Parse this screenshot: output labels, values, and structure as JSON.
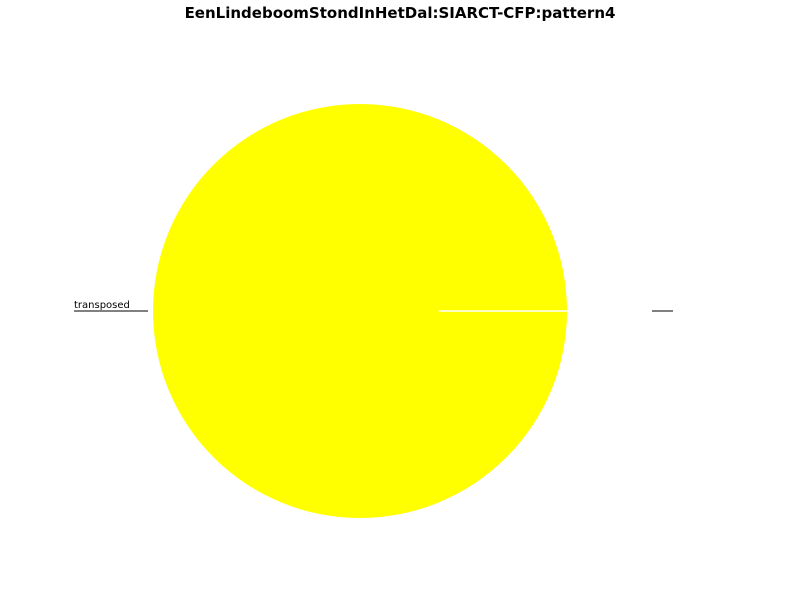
{
  "chart_data": {
    "type": "pie",
    "title": "EenLindeboomStondInHetDal:SIARCT-CFP:pattern4",
    "slices": [
      {
        "label": "transposed",
        "value": 100,
        "color": "#ffff00"
      },
      {
        "label": "",
        "value": 0,
        "color": "#ffffff"
      }
    ],
    "legend": "none"
  }
}
